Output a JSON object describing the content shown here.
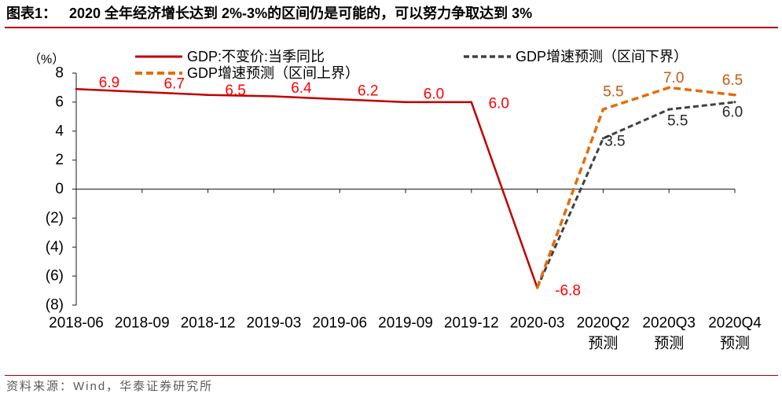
{
  "header": {
    "figure_label": "图表1："
  },
  "colors": {
    "rule": "#B20000",
    "axis": "#1a1a1a",
    "source_text": "#595959"
  },
  "chart_data": {
    "type": "line",
    "title": "2020 全年经济增长达到 2%-3%的区间仍是可能的，可以努力争取达到 3%",
    "ylabel": "（%）",
    "ylim": [
      -8,
      8
    ],
    "yticks": [
      8,
      6,
      4,
      2,
      0,
      -2,
      -4,
      -6,
      -8
    ],
    "ytick_labels": [
      "8",
      "6",
      "4",
      "2",
      "0",
      "(2)",
      "(4)",
      "(6)",
      "(8)"
    ],
    "categories": [
      "2018-06",
      "2018-09",
      "2018-12",
      "2019-03",
      "2019-06",
      "2019-09",
      "2019-12",
      "2020-03",
      "2020Q2",
      "2020Q3",
      "2020Q4"
    ],
    "category_notes": [
      null,
      null,
      null,
      null,
      null,
      null,
      null,
      null,
      "预测",
      "预测",
      "预测"
    ],
    "grid": false,
    "legend": "top",
    "series": [
      {
        "name": "GDP:不变价:当季同比",
        "line_style": "solid",
        "color": "#C00000",
        "label_color": "#FF0000",
        "values": [
          6.9,
          6.7,
          6.5,
          6.4,
          6.2,
          6.0,
          6.0,
          -6.8,
          null,
          null,
          null
        ],
        "data_labels": [
          "6.9",
          "6.7",
          "6.5",
          "6.4",
          "6.2",
          "6.0",
          "6.0",
          "-6.8",
          null,
          null,
          null
        ]
      },
      {
        "name": "GDP增速预测（区间下界）",
        "line_style": "dashed",
        "color": "#404040",
        "label_color": "#262626",
        "values": [
          null,
          null,
          null,
          null,
          null,
          null,
          null,
          -6.8,
          3.5,
          5.5,
          6.0
        ],
        "data_labels": [
          null,
          null,
          null,
          null,
          null,
          null,
          null,
          null,
          "3.5",
          "5.5",
          "6.0"
        ]
      },
      {
        "name": "GDP增速预测（区间上界）",
        "line_style": "dashed",
        "color": "#E46C0A",
        "label_color": "#C55A11",
        "values": [
          null,
          null,
          null,
          null,
          null,
          null,
          null,
          -6.8,
          5.5,
          7.0,
          6.5
        ],
        "data_labels": [
          null,
          null,
          null,
          null,
          null,
          null,
          null,
          null,
          "5.5",
          "7.0",
          "6.5"
        ]
      }
    ]
  },
  "footer": {
    "source": "资料来源：Wind，华泰证券研究所"
  }
}
